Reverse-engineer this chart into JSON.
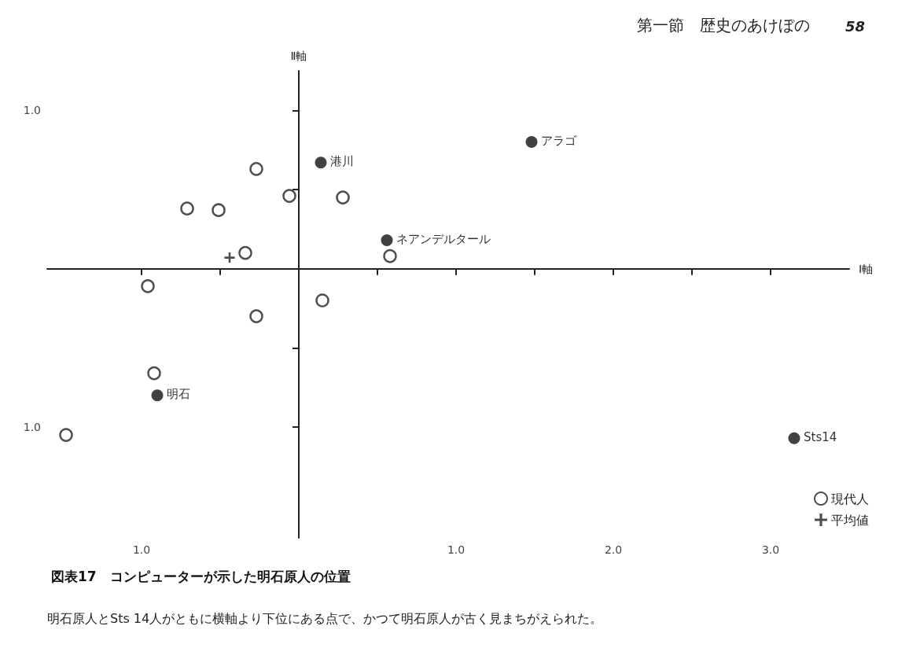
{
  "chart_data": {
    "type": "scatter",
    "title": "図表17　コンピューターが示した明石原人の位置",
    "xlabel": "Ⅰ軸",
    "ylabel": "Ⅱ軸",
    "xlim": [
      -1.6,
      3.5
    ],
    "ylim": [
      -1.7,
      1.25
    ],
    "xticks": [
      {
        "value": -1,
        "label": "1.0"
      },
      {
        "value": -0.5,
        "label": null
      },
      {
        "value": 0.5,
        "label": null
      },
      {
        "value": 1,
        "label": "1.0"
      },
      {
        "value": 1.5,
        "label": null
      },
      {
        "value": 2,
        "label": "2.0"
      },
      {
        "value": 2.5,
        "label": null
      },
      {
        "value": 3,
        "label": "3.0"
      }
    ],
    "yticks": [
      {
        "value": 1,
        "label": "1.0"
      },
      {
        "value": 0.5,
        "label": null
      },
      {
        "value": -0.5,
        "label": null
      },
      {
        "value": -1,
        "label": "1.0"
      }
    ],
    "grid": false,
    "legend": "bottom right",
    "series": [
      {
        "name": "現代人",
        "marker": "circle",
        "color": "#222222",
        "x": [
          -0.27,
          -0.06,
          0.28,
          -0.71,
          -0.51,
          -0.34,
          0.58,
          -0.96,
          0.15,
          -0.27,
          -0.92,
          -1.48
        ],
        "values": [
          0.63,
          0.46,
          0.45,
          0.38,
          0.37,
          0.1,
          0.08,
          -0.11,
          -0.2,
          -0.3,
          -0.66,
          -1.05
        ]
      },
      {
        "name": "平均値",
        "marker": "cross",
        "color": "#222222",
        "x": [
          -0.44
        ],
        "values": [
          0.07
        ]
      },
      {
        "marker": "circle",
        "color": "#111111",
        "x": [
          0.14,
          1.48,
          0.56,
          -0.9,
          3.15
        ],
        "values": [
          0.67,
          0.8,
          0.18,
          -0.8,
          -1.07
        ]
      }
    ],
    "annotations": [
      "第一節　歴史のあけぼの",
      "58",
      "明石原人とSts 14人がともに横軸より下位にある点で、かつて明石原人が古く見まちがえられた。",
      {
        "text": "港川",
        "x": 0.14,
        "y": 0.67
      },
      {
        "text": "アラゴ",
        "x": 1.48,
        "y": 0.8
      },
      {
        "text": "ネアンデルタール",
        "x": 0.56,
        "y": 0.18
      },
      {
        "text": "明石",
        "x": -0.9,
        "y": -0.8
      },
      {
        "text": "Sts14",
        "x": 3.15,
        "y": -1.07
      }
    ]
  }
}
